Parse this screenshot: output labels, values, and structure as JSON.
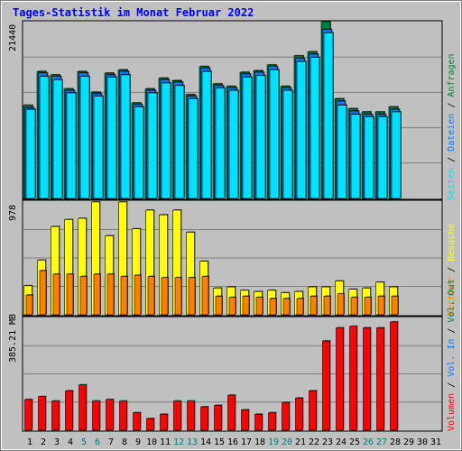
{
  "title": "Tages-Statistik im Monat Februar 2022",
  "colors": {
    "background": "#c0c0c0",
    "panel": "#c0c0c0",
    "border": "#808080",
    "title": "#0000ff",
    "hits": "#008040",
    "files": "#0080ff",
    "pages": "#00e0ff",
    "visits": "#ffff00",
    "sites": "#ff8000",
    "kbytes": "#ff0000",
    "weekend": "#008080",
    "day_label": "#000000"
  },
  "panels": {
    "top": {
      "max_label": "21440",
      "legend": [
        {
          "text": "Anfragen",
          "color": "#008040"
        },
        {
          "text": "Dateien",
          "color": "#0080ff"
        },
        {
          "text": "Seiten",
          "color": "#00e0ff"
        }
      ]
    },
    "middle": {
      "max_label": "978",
      "legend": [
        {
          "text": "Besuche",
          "color": "#ffff00"
        },
        {
          "text": "Rechner",
          "color": "#ff8000"
        }
      ]
    },
    "bottom": {
      "max_label": "385.21 MB",
      "legend": [
        {
          "text": "Vol. Out",
          "color": "#008040"
        },
        {
          "text": "Vol. In",
          "color": "#0080ff"
        },
        {
          "text": "Volumen",
          "color": "#ff0000"
        }
      ]
    }
  },
  "chart_data": {
    "type": "bar",
    "title": "Tages-Statistik im Monat Februar 2022",
    "categories": [
      "1",
      "2",
      "3",
      "4",
      "5",
      "6",
      "7",
      "8",
      "9",
      "10",
      "11",
      "12",
      "13",
      "14",
      "15",
      "16",
      "17",
      "18",
      "19",
      "20",
      "21",
      "22",
      "23",
      "24",
      "25",
      "26",
      "27",
      "28",
      "29",
      "30",
      "31"
    ],
    "weekend_days": [
      "5",
      "6",
      "12",
      "13",
      "19",
      "20",
      "26",
      "27"
    ],
    "panels": [
      {
        "name": "top",
        "ylim": [
          0,
          21440
        ],
        "series": [
          {
            "name": "Anfragen",
            "values": [
              11300,
              15400,
              15000,
              13300,
              15400,
              12900,
              15200,
              15600,
              11600,
              13300,
              14600,
              14300,
              12600,
              16000,
              13900,
              13600,
              15300,
              15500,
              16200,
              13600,
              17300,
              17800,
              21440,
              12100,
              10900,
              10500,
              10500,
              11100,
              0,
              0,
              0
            ]
          },
          {
            "name": "Dateien",
            "values": [
              11000,
              15200,
              14800,
              13100,
              15200,
              12700,
              15000,
              15400,
              11400,
              13100,
              14400,
              14100,
              12400,
              15800,
              13700,
              13400,
              15100,
              15300,
              16000,
              13400,
              17000,
              17500,
              20500,
              11800,
              10600,
              10200,
              10200,
              10800,
              0,
              0,
              0
            ]
          },
          {
            "name": "Seiten",
            "values": [
              10800,
              14800,
              14400,
              12800,
              14800,
              12400,
              14700,
              15000,
              11100,
              12800,
              14000,
              13700,
              12100,
              15400,
              13400,
              13100,
              14700,
              14900,
              15600,
              13100,
              16600,
              17100,
              20100,
              11300,
              10200,
              9900,
              9900,
              10500,
              0,
              0,
              0
            ]
          }
        ]
      },
      {
        "name": "middle",
        "ylim": [
          0,
          978
        ],
        "series": [
          {
            "name": "Besuche",
            "values": [
              250,
              470,
              760,
              820,
              830,
              970,
              680,
              970,
              740,
              900,
              860,
              900,
              710,
              460,
              230,
              240,
              210,
              200,
              210,
              190,
              200,
              240,
              240,
              290,
              220,
              230,
              280,
              240,
              0,
              0,
              0
            ]
          },
          {
            "name": "Rechner",
            "values": [
              170,
              380,
              350,
              350,
              330,
              350,
              350,
              330,
              340,
              330,
              320,
              320,
              320,
              330,
              160,
              150,
              160,
              150,
              140,
              140,
              140,
              160,
              160,
              180,
              150,
              150,
              160,
              160,
              0,
              0,
              0
            ]
          }
        ]
      },
      {
        "name": "bottom",
        "ylim": [
          0,
          385.21
        ],
        "series": [
          {
            "name": "Volumen",
            "values": [
              105,
              115,
              100,
              135,
              155,
              100,
              105,
              100,
              60,
              40,
              55,
              100,
              100,
              80,
              85,
              120,
              70,
              55,
              60,
              95,
              110,
              135,
              305,
              350,
              355,
              350,
              350,
              370,
              0,
              0,
              0
            ]
          }
        ]
      }
    ],
    "y_max_labels": [
      "21440",
      "978",
      "385.21 MB"
    ]
  }
}
